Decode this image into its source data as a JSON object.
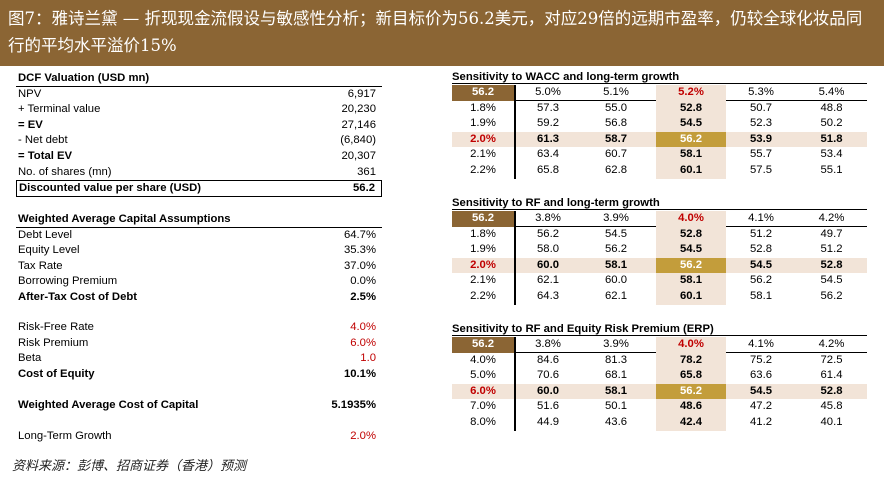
{
  "title": "图7：雅诗兰黛 — 折现现金流假设与敏感性分析；新目标价为56.2美元，对应29倍的远期市盈率，仍较全球化妆品同行的平均水平溢价15%",
  "source": "资料来源：彭博、招商证券（香港）预测",
  "dcf": {
    "header": "DCF Valuation (USD mn)",
    "rows": [
      {
        "label": "NPV",
        "value": "6,917"
      },
      {
        "label": "+ Terminal value",
        "value": "20,230"
      },
      {
        "label": "= EV",
        "value": "27,146"
      },
      {
        "label": "- Net debt",
        "value": "(6,840)"
      },
      {
        "label": "= Total EV",
        "value": "20,307"
      },
      {
        "label": "No. of shares (mn)",
        "value": "361"
      }
    ],
    "per_share": {
      "label": "Discounted value per share (USD)",
      "value": "56.2"
    }
  },
  "wacc": {
    "header": "Weighted Average Capital Assumptions",
    "rows1": [
      {
        "label": "Debt Level",
        "value": "64.7%"
      },
      {
        "label": "Equity Level",
        "value": "35.3%"
      },
      {
        "label": "Tax Rate",
        "value": "37.0%"
      },
      {
        "label": "Borrowing Premium",
        "value": "0.0%"
      },
      {
        "label": "After-Tax Cost of Debt",
        "value": "2.5%"
      }
    ],
    "rows2": [
      {
        "label": "Risk-Free Rate",
        "value": "4.0%"
      },
      {
        "label": "Risk Premium",
        "value": "6.0%"
      },
      {
        "label": "Beta",
        "value": "1.0"
      },
      {
        "label": "Cost of Equity",
        "value": "10.1%"
      }
    ],
    "wacc_row": {
      "label": "Weighted Average Cost of Capital",
      "value": "5.1935%"
    },
    "ltg": {
      "label": "Long-Term Growth",
      "value": "2.0%"
    }
  },
  "sens1": {
    "title": "Sensitivity to WACC and long-term growth",
    "corner": "56.2",
    "cols": [
      "5.0%",
      "5.1%",
      "5.2%",
      "5.3%",
      "5.4%"
    ],
    "rows": [
      {
        "h": "1.8%",
        "v": [
          "57.3",
          "55.0",
          "52.8",
          "50.7",
          "48.8"
        ]
      },
      {
        "h": "1.9%",
        "v": [
          "59.2",
          "56.8",
          "54.5",
          "52.3",
          "50.2"
        ]
      },
      {
        "h": "2.0%",
        "v": [
          "61.3",
          "58.7",
          "56.2",
          "53.9",
          "51.8"
        ]
      },
      {
        "h": "2.1%",
        "v": [
          "63.4",
          "60.7",
          "58.1",
          "55.7",
          "53.4"
        ]
      },
      {
        "h": "2.2%",
        "v": [
          "65.8",
          "62.8",
          "60.1",
          "57.5",
          "55.1"
        ]
      }
    ]
  },
  "sens2": {
    "title": "Sensitivity to RF and long-term growth",
    "corner": "56.2",
    "cols": [
      "3.8%",
      "3.9%",
      "4.0%",
      "4.1%",
      "4.2%"
    ],
    "rows": [
      {
        "h": "1.8%",
        "v": [
          "56.2",
          "54.5",
          "52.8",
          "51.2",
          "49.7"
        ]
      },
      {
        "h": "1.9%",
        "v": [
          "58.0",
          "56.2",
          "54.5",
          "52.8",
          "51.2"
        ]
      },
      {
        "h": "2.0%",
        "v": [
          "60.0",
          "58.1",
          "56.2",
          "54.5",
          "52.8"
        ]
      },
      {
        "h": "2.1%",
        "v": [
          "62.1",
          "60.0",
          "58.1",
          "56.2",
          "54.5"
        ]
      },
      {
        "h": "2.2%",
        "v": [
          "64.3",
          "62.1",
          "60.1",
          "58.1",
          "56.2"
        ]
      }
    ]
  },
  "sens3": {
    "title": "Sensitivity to RF and Equity Risk Premium (ERP)",
    "corner": "56.2",
    "cols": [
      "3.8%",
      "3.9%",
      "4.0%",
      "4.1%",
      "4.2%"
    ],
    "rows": [
      {
        "h": "4.0%",
        "v": [
          "84.6",
          "81.3",
          "78.2",
          "75.2",
          "72.5"
        ]
      },
      {
        "h": "5.0%",
        "v": [
          "70.6",
          "68.1",
          "65.8",
          "63.6",
          "61.4"
        ]
      },
      {
        "h": "6.0%",
        "v": [
          "60.0",
          "58.1",
          "56.2",
          "54.5",
          "52.8"
        ]
      },
      {
        "h": "7.0%",
        "v": [
          "51.6",
          "50.1",
          "48.6",
          "47.2",
          "45.8"
        ]
      },
      {
        "h": "8.0%",
        "v": [
          "44.9",
          "43.6",
          "42.4",
          "41.2",
          "40.1"
        ]
      }
    ]
  }
}
